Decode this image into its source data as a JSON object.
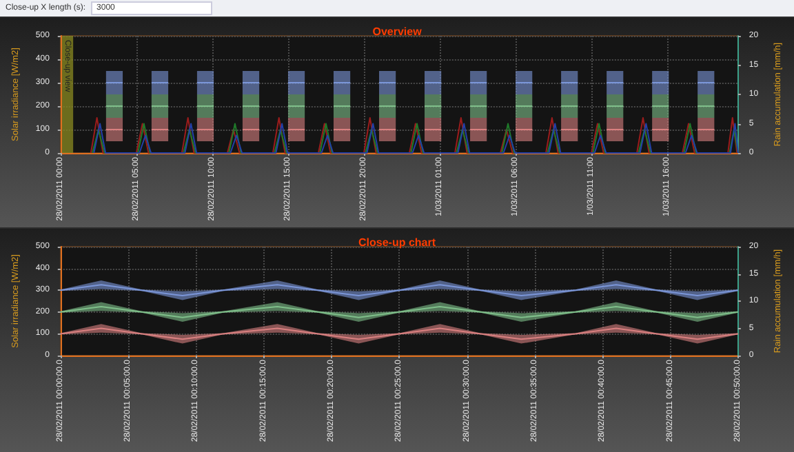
{
  "chart_data": [
    {
      "type": "line",
      "title": "Overview",
      "ylabel": "Solar irradiance [W/m2]",
      "y2label": "Rain accumulation [mm/h]",
      "annotations": [
        "Close-up X length (s):",
        "3000"
      ],
      "grid": true,
      "xlim": [
        "2011-02-28T00:00",
        "2011-03-01T20:40"
      ],
      "xticks": [
        {
          "value": "2011-02-28T00:00",
          "label": "28/02/2011 00:00"
        },
        {
          "value": "2011-02-28T05:00",
          "label": "28/02/2011 05:00"
        },
        {
          "value": "2011-02-28T10:00",
          "label": "28/02/2011 10:00"
        },
        {
          "value": "2011-02-28T15:00",
          "label": "28/02/2011 15:00"
        },
        {
          "value": "2011-02-28T20:00",
          "label": "28/02/2011 20:00"
        },
        {
          "value": "2011-03-01T01:00",
          "label": "1/03/2011 01:00"
        },
        {
          "value": "2011-03-01T06:00",
          "label": "1/03/2011 06:00"
        },
        {
          "value": "2011-03-01T11:00",
          "label": "1/03/2011 11:00"
        },
        {
          "value": "2011-03-01T16:00",
          "label": "1/03/2011 16:00"
        }
      ],
      "ylim": [
        0,
        500
      ],
      "yticks": [
        0,
        100,
        200,
        300,
        400,
        500
      ],
      "y2lim": [
        0,
        20
      ],
      "y2ticks": [
        0,
        5,
        10,
        15,
        20
      ],
      "bands": [
        {
          "axis": "x",
          "from": "2011-02-28T00:00",
          "to": "2011-02-28T00:50",
          "label": "Close-up view",
          "color": "#8a8a20"
        }
      ],
      "series": [
        {
          "color": "#7b96d8",
          "x": [
            "2011-02-28T03:00",
            "2011-02-28T04:06"
          ],
          "values": [
            300,
            300
          ],
          "lower": [
            250,
            250
          ],
          "upper": [
            350,
            350
          ]
        },
        {
          "color": "#7b96d8",
          "x": [
            "2011-02-28T06:00",
            "2011-02-28T07:06"
          ],
          "values": [
            300,
            300
          ],
          "lower": [
            250,
            250
          ],
          "upper": [
            350,
            350
          ]
        },
        {
          "color": "#7b96d8",
          "x": [
            "2011-02-28T09:00",
            "2011-02-28T10:06"
          ],
          "values": [
            300,
            300
          ],
          "lower": [
            250,
            250
          ],
          "upper": [
            350,
            350
          ]
        },
        {
          "color": "#7b96d8",
          "x": [
            "2011-02-28T12:00",
            "2011-02-28T13:06"
          ],
          "values": [
            300,
            300
          ],
          "lower": [
            250,
            250
          ],
          "upper": [
            350,
            350
          ]
        },
        {
          "color": "#7b96d8",
          "x": [
            "2011-02-28T15:00",
            "2011-02-28T16:06"
          ],
          "values": [
            300,
            300
          ],
          "lower": [
            250,
            250
          ],
          "upper": [
            350,
            350
          ]
        },
        {
          "color": "#7b96d8",
          "x": [
            "2011-02-28T18:00",
            "2011-02-28T19:06"
          ],
          "values": [
            300,
            300
          ],
          "lower": [
            250,
            250
          ],
          "upper": [
            350,
            350
          ]
        },
        {
          "color": "#7b96d8",
          "x": [
            "2011-02-28T21:00",
            "2011-02-28T22:06"
          ],
          "values": [
            300,
            300
          ],
          "lower": [
            250,
            250
          ],
          "upper": [
            350,
            350
          ]
        },
        {
          "color": "#7b96d8",
          "x": [
            "2011-03-01T00:00",
            "2011-03-01T01:06"
          ],
          "values": [
            300,
            300
          ],
          "lower": [
            250,
            250
          ],
          "upper": [
            350,
            350
          ]
        },
        {
          "color": "#7b96d8",
          "x": [
            "2011-03-01T03:00",
            "2011-03-01T04:06"
          ],
          "values": [
            300,
            300
          ],
          "lower": [
            250,
            250
          ],
          "upper": [
            350,
            350
          ]
        },
        {
          "color": "#7b96d8",
          "x": [
            "2011-03-01T06:00",
            "2011-03-01T07:06"
          ],
          "values": [
            300,
            300
          ],
          "lower": [
            250,
            250
          ],
          "upper": [
            350,
            350
          ]
        },
        {
          "color": "#7b96d8",
          "x": [
            "2011-03-01T09:00",
            "2011-03-01T10:06"
          ],
          "values": [
            300,
            300
          ],
          "lower": [
            250,
            250
          ],
          "upper": [
            350,
            350
          ]
        },
        {
          "color": "#7b96d8",
          "x": [
            "2011-03-01T12:00",
            "2011-03-01T13:06"
          ],
          "values": [
            300,
            300
          ],
          "lower": [
            250,
            250
          ],
          "upper": [
            350,
            350
          ]
        },
        {
          "color": "#7b96d8",
          "x": [
            "2011-03-01T15:00",
            "2011-03-01T16:06"
          ],
          "values": [
            300,
            300
          ],
          "lower": [
            250,
            250
          ],
          "upper": [
            350,
            350
          ]
        },
        {
          "color": "#7b96d8",
          "x": [
            "2011-03-01T18:00",
            "2011-03-01T19:06"
          ],
          "values": [
            300,
            300
          ],
          "lower": [
            250,
            250
          ],
          "upper": [
            350,
            350
          ]
        },
        {
          "color": "#7fbf8a",
          "x": [
            "2011-02-28T03:00",
            "2011-02-28T04:06"
          ],
          "values": [
            200,
            200
          ],
          "lower": [
            150,
            150
          ],
          "upper": [
            250,
            250
          ]
        },
        {
          "color": "#7fbf8a",
          "x": [
            "2011-02-28T06:00",
            "2011-02-28T07:06"
          ],
          "values": [
            200,
            200
          ],
          "lower": [
            150,
            150
          ],
          "upper": [
            250,
            250
          ]
        },
        {
          "color": "#7fbf8a",
          "x": [
            "2011-02-28T09:00",
            "2011-02-28T10:06"
          ],
          "values": [
            200,
            200
          ],
          "lower": [
            150,
            150
          ],
          "upper": [
            250,
            250
          ]
        },
        {
          "color": "#7fbf8a",
          "x": [
            "2011-02-28T12:00",
            "2011-02-28T13:06"
          ],
          "values": [
            200,
            200
          ],
          "lower": [
            150,
            150
          ],
          "upper": [
            250,
            250
          ]
        },
        {
          "color": "#7fbf8a",
          "x": [
            "2011-02-28T15:00",
            "2011-02-28T16:06"
          ],
          "values": [
            200,
            200
          ],
          "lower": [
            150,
            150
          ],
          "upper": [
            250,
            250
          ]
        },
        {
          "color": "#7fbf8a",
          "x": [
            "2011-02-28T18:00",
            "2011-02-28T19:06"
          ],
          "values": [
            200,
            200
          ],
          "lower": [
            150,
            150
          ],
          "upper": [
            250,
            250
          ]
        },
        {
          "color": "#7fbf8a",
          "x": [
            "2011-02-28T21:00",
            "2011-02-28T22:06"
          ],
          "values": [
            200,
            200
          ],
          "lower": [
            150,
            150
          ],
          "upper": [
            250,
            250
          ]
        },
        {
          "color": "#7fbf8a",
          "x": [
            "2011-03-01T00:00",
            "2011-03-01T01:06"
          ],
          "values": [
            200,
            200
          ],
          "lower": [
            150,
            150
          ],
          "upper": [
            250,
            250
          ]
        },
        {
          "color": "#7fbf8a",
          "x": [
            "2011-03-01T03:00",
            "2011-03-01T04:06"
          ],
          "values": [
            200,
            200
          ],
          "lower": [
            150,
            150
          ],
          "upper": [
            250,
            250
          ]
        },
        {
          "color": "#7fbf8a",
          "x": [
            "2011-03-01T06:00",
            "2011-03-01T07:06"
          ],
          "values": [
            200,
            200
          ],
          "lower": [
            150,
            150
          ],
          "upper": [
            250,
            250
          ]
        },
        {
          "color": "#7fbf8a",
          "x": [
            "2011-03-01T09:00",
            "2011-03-01T10:06"
          ],
          "values": [
            200,
            200
          ],
          "lower": [
            150,
            150
          ],
          "upper": [
            250,
            250
          ]
        },
        {
          "color": "#7fbf8a",
          "x": [
            "2011-03-01T12:00",
            "2011-03-01T13:06"
          ],
          "values": [
            200,
            200
          ],
          "lower": [
            150,
            150
          ],
          "upper": [
            250,
            250
          ]
        },
        {
          "color": "#7fbf8a",
          "x": [
            "2011-03-01T15:00",
            "2011-03-01T16:06"
          ],
          "values": [
            200,
            200
          ],
          "lower": [
            150,
            150
          ],
          "upper": [
            250,
            250
          ]
        },
        {
          "color": "#7fbf8a",
          "x": [
            "2011-03-01T18:00",
            "2011-03-01T19:06"
          ],
          "values": [
            200,
            200
          ],
          "lower": [
            150,
            150
          ],
          "upper": [
            250,
            250
          ]
        },
        {
          "color": "#d98080",
          "x": [
            "2011-02-28T03:00",
            "2011-02-28T04:06"
          ],
          "values": [
            100,
            100
          ],
          "lower": [
            50,
            50
          ],
          "upper": [
            150,
            150
          ]
        },
        {
          "color": "#d98080",
          "x": [
            "2011-02-28T06:00",
            "2011-02-28T07:06"
          ],
          "values": [
            100,
            100
          ],
          "lower": [
            50,
            50
          ],
          "upper": [
            150,
            150
          ]
        },
        {
          "color": "#d98080",
          "x": [
            "2011-02-28T09:00",
            "2011-02-28T10:06"
          ],
          "values": [
            100,
            100
          ],
          "lower": [
            50,
            50
          ],
          "upper": [
            150,
            150
          ]
        },
        {
          "color": "#d98080",
          "x": [
            "2011-02-28T12:00",
            "2011-02-28T13:06"
          ],
          "values": [
            100,
            100
          ],
          "lower": [
            50,
            50
          ],
          "upper": [
            150,
            150
          ]
        },
        {
          "color": "#d98080",
          "x": [
            "2011-02-28T15:00",
            "2011-02-28T16:06"
          ],
          "values": [
            100,
            100
          ],
          "lower": [
            50,
            50
          ],
          "upper": [
            150,
            150
          ]
        },
        {
          "color": "#d98080",
          "x": [
            "2011-02-28T18:00",
            "2011-02-28T19:06"
          ],
          "values": [
            100,
            100
          ],
          "lower": [
            50,
            50
          ],
          "upper": [
            150,
            150
          ]
        },
        {
          "color": "#d98080",
          "x": [
            "2011-02-28T21:00",
            "2011-02-28T22:06"
          ],
          "values": [
            100,
            100
          ],
          "lower": [
            50,
            50
          ],
          "upper": [
            150,
            150
          ]
        },
        {
          "color": "#d98080",
          "x": [
            "2011-03-01T00:00",
            "2011-03-01T01:06"
          ],
          "values": [
            100,
            100
          ],
          "lower": [
            50,
            50
          ],
          "upper": [
            150,
            150
          ]
        },
        {
          "color": "#d98080",
          "x": [
            "2011-03-01T03:00",
            "2011-03-01T04:06"
          ],
          "values": [
            100,
            100
          ],
          "lower": [
            50,
            50
          ],
          "upper": [
            150,
            150
          ]
        },
        {
          "color": "#d98080",
          "x": [
            "2011-03-01T06:00",
            "2011-03-01T07:06"
          ],
          "values": [
            100,
            100
          ],
          "lower": [
            50,
            50
          ],
          "upper": [
            150,
            150
          ]
        },
        {
          "color": "#d98080",
          "x": [
            "2011-03-01T09:00",
            "2011-03-01T10:06"
          ],
          "values": [
            100,
            100
          ],
          "lower": [
            50,
            50
          ],
          "upper": [
            150,
            150
          ]
        },
        {
          "color": "#d98080",
          "x": [
            "2011-03-01T12:00",
            "2011-03-01T13:06"
          ],
          "values": [
            100,
            100
          ],
          "lower": [
            50,
            50
          ],
          "upper": [
            150,
            150
          ]
        },
        {
          "color": "#d98080",
          "x": [
            "2011-03-01T15:00",
            "2011-03-01T16:06"
          ],
          "values": [
            100,
            100
          ],
          "lower": [
            50,
            50
          ],
          "upper": [
            150,
            150
          ]
        },
        {
          "color": "#d98080",
          "x": [
            "2011-03-01T18:00",
            "2011-03-01T19:06"
          ],
          "values": [
            100,
            100
          ],
          "lower": [
            50,
            50
          ],
          "upper": [
            150,
            150
          ]
        },
        {
          "color": "#9b1c1c",
          "axis": "y2",
          "x": [
            "2011-02-28T02:00",
            "2011-02-28T02:24",
            "2011-02-28T02:48",
            "2011-02-28T05:00",
            "2011-02-28T05:24",
            "2011-02-28T05:48",
            "2011-02-28T08:00",
            "2011-02-28T08:24",
            "2011-02-28T08:48",
            "2011-02-28T11:00",
            "2011-02-28T11:24",
            "2011-02-28T11:48",
            "2011-02-28T14:00",
            "2011-02-28T14:24",
            "2011-02-28T14:48",
            "2011-02-28T17:00",
            "2011-02-28T17:24",
            "2011-02-28T17:48",
            "2011-02-28T20:00",
            "2011-02-28T20:24",
            "2011-02-28T20:48",
            "2011-02-28T23:00",
            "2011-02-28T23:24",
            "2011-02-28T23:48",
            "2011-03-01T02:00",
            "2011-03-01T02:24",
            "2011-03-01T02:48",
            "2011-03-01T05:00",
            "2011-03-01T05:24",
            "2011-03-01T05:48",
            "2011-03-01T08:00",
            "2011-03-01T08:24",
            "2011-03-01T08:48",
            "2011-03-01T11:00",
            "2011-03-01T11:24",
            "2011-03-01T11:48",
            "2011-03-01T14:00",
            "2011-03-01T14:24",
            "2011-03-01T14:48",
            "2011-03-01T17:00",
            "2011-03-01T17:24",
            "2011-03-01T17:48",
            "2011-03-01T20:00",
            "2011-03-01T20:18",
            "2011-03-01T20:36"
          ],
          "values": [
            0,
            6,
            0,
            0,
            5,
            0,
            0,
            6,
            0,
            0,
            4,
            0,
            0,
            6,
            0,
            0,
            5,
            0,
            0,
            6,
            0,
            0,
            5,
            0,
            0,
            6,
            0,
            0,
            4,
            0,
            0,
            6,
            0,
            0,
            5,
            0,
            0,
            6,
            0,
            0,
            5,
            0,
            0,
            6,
            0
          ]
        },
        {
          "color": "#1f7a2a",
          "axis": "y2",
          "x": [
            "2011-02-28T02:06",
            "2011-02-28T02:30",
            "2011-02-28T02:54",
            "2011-02-28T05:06",
            "2011-02-28T05:30",
            "2011-02-28T05:54",
            "2011-02-28T08:06",
            "2011-02-28T08:30",
            "2011-02-28T08:54",
            "2011-02-28T11:06",
            "2011-02-28T11:30",
            "2011-02-28T11:54",
            "2011-02-28T14:06",
            "2011-02-28T14:30",
            "2011-02-28T14:54",
            "2011-02-28T17:06",
            "2011-02-28T17:30",
            "2011-02-28T17:54",
            "2011-02-28T20:06",
            "2011-02-28T20:30",
            "2011-02-28T20:54",
            "2011-02-28T23:06",
            "2011-02-28T23:30",
            "2011-02-28T23:54",
            "2011-03-01T02:06",
            "2011-03-01T02:30",
            "2011-03-01T02:54",
            "2011-03-01T05:06",
            "2011-03-01T05:30",
            "2011-03-01T05:54",
            "2011-03-01T08:06",
            "2011-03-01T08:30",
            "2011-03-01T08:54",
            "2011-03-01T11:06",
            "2011-03-01T11:30",
            "2011-03-01T11:54",
            "2011-03-01T14:06",
            "2011-03-01T14:30",
            "2011-03-01T14:54",
            "2011-03-01T17:06",
            "2011-03-01T17:30",
            "2011-03-01T17:54",
            "2011-03-01T20:06",
            "2011-03-01T20:24",
            "2011-03-01T20:40"
          ],
          "values": [
            0,
            4,
            0,
            0,
            5,
            0,
            0,
            4,
            0,
            0,
            5,
            0,
            0,
            4,
            0,
            0,
            5,
            0,
            0,
            4,
            0,
            0,
            5,
            0,
            0,
            4,
            0,
            0,
            5,
            0,
            0,
            4,
            0,
            0,
            5,
            0,
            0,
            4,
            0,
            0,
            5,
            0,
            0,
            4,
            0
          ]
        },
        {
          "color": "#2340a8",
          "axis": "y2",
          "x": [
            "2011-02-28T02:12",
            "2011-02-28T02:36",
            "2011-02-28T02:58",
            "2011-02-28T05:12",
            "2011-02-28T05:36",
            "2011-02-28T05:58",
            "2011-02-28T08:12",
            "2011-02-28T08:36",
            "2011-02-28T08:58",
            "2011-02-28T11:12",
            "2011-02-28T11:36",
            "2011-02-28T11:58",
            "2011-02-28T14:12",
            "2011-02-28T14:36",
            "2011-02-28T14:58",
            "2011-02-28T17:12",
            "2011-02-28T17:36",
            "2011-02-28T17:58",
            "2011-02-28T20:12",
            "2011-02-28T20:36",
            "2011-02-28T20:58",
            "2011-02-28T23:12",
            "2011-02-28T23:36",
            "2011-02-28T23:58",
            "2011-03-01T02:12",
            "2011-03-01T02:36",
            "2011-03-01T02:58",
            "2011-03-01T05:12",
            "2011-03-01T05:36",
            "2011-03-01T05:58",
            "2011-03-01T08:12",
            "2011-03-01T08:36",
            "2011-03-01T08:58",
            "2011-03-01T11:12",
            "2011-03-01T11:36",
            "2011-03-01T11:58",
            "2011-03-01T14:12",
            "2011-03-01T14:36",
            "2011-03-01T14:58",
            "2011-03-01T17:12",
            "2011-03-01T17:36",
            "2011-03-01T17:58",
            "2011-03-01T20:10",
            "2011-03-01T20:28",
            "2011-03-01T20:40"
          ],
          "values": [
            0,
            5,
            0,
            0,
            3,
            0,
            0,
            5,
            0,
            0,
            3,
            0,
            0,
            5,
            0,
            0,
            3,
            0,
            0,
            5,
            0,
            0,
            3,
            0,
            0,
            5,
            0,
            0,
            3,
            0,
            0,
            5,
            0,
            0,
            3,
            0,
            0,
            5,
            0,
            0,
            3,
            0,
            0,
            5,
            0
          ]
        }
      ]
    },
    {
      "type": "line",
      "title": "Close-up chart",
      "ylabel": "Solar irradiance [W/m2]",
      "y2label": "Rain accumulation [mm/h]",
      "grid": true,
      "xlim": [
        "2011-02-28T00:00",
        "2011-02-28T00:50"
      ],
      "xticks": [
        {
          "value": "2011-02-28T00:00",
          "label": "28/02/2011 00:00:00.0"
        },
        {
          "value": "2011-02-28T00:05",
          "label": "28/02/2011 00:05:00.0"
        },
        {
          "value": "2011-02-28T00:10",
          "label": "28/02/2011 00:10:00.0"
        },
        {
          "value": "2011-02-28T00:15",
          "label": "28/02/2011 00:15:00.0"
        },
        {
          "value": "2011-02-28T00:20",
          "label": "28/02/2011 00:20:00.0"
        },
        {
          "value": "2011-02-28T00:25",
          "label": "28/02/2011 00:25:00.0"
        },
        {
          "value": "2011-02-28T00:30",
          "label": "28/02/2011 00:30:00.0"
        },
        {
          "value": "2011-02-28T00:35",
          "label": "28/02/2011 00:35:00.0"
        },
        {
          "value": "2011-02-28T00:40",
          "label": "28/02/2011 00:40:00.0"
        },
        {
          "value": "2011-02-28T00:45",
          "label": "28/02/2011 00:45:00.0"
        },
        {
          "value": "2011-02-28T00:50",
          "label": "28/02/2011 00:50:00.0"
        }
      ],
      "ylim": [
        0,
        500
      ],
      "yticks": [
        0,
        100,
        200,
        300,
        400,
        500
      ],
      "y2lim": [
        0,
        20
      ],
      "y2ticks": [
        0,
        5,
        10,
        15,
        20
      ],
      "x": [
        "2011-02-28T00:00",
        "2011-02-28T00:03",
        "2011-02-28T00:06",
        "2011-02-28T00:09",
        "2011-02-28T00:12",
        "2011-02-28T00:16",
        "2011-02-28T00:19",
        "2011-02-28T00:22",
        "2011-02-28T00:25",
        "2011-02-28T00:28",
        "2011-02-28T00:31",
        "2011-02-28T00:34",
        "2011-02-28T00:38",
        "2011-02-28T00:41",
        "2011-02-28T00:44",
        "2011-02-28T00:47",
        "2011-02-28T00:50"
      ],
      "series": [
        {
          "color": "#7b96d8",
          "values": [
            300,
            325,
            300,
            275,
            300,
            325,
            300,
            275,
            300,
            325,
            300,
            275,
            300,
            325,
            300,
            275,
            300
          ],
          "lower": [
            297,
            305,
            297,
            255,
            297,
            305,
            297,
            255,
            297,
            305,
            297,
            255,
            297,
            305,
            297,
            255,
            297
          ],
          "upper": [
            303,
            345,
            303,
            295,
            303,
            345,
            303,
            295,
            303,
            345,
            303,
            295,
            303,
            345,
            303,
            295,
            303
          ]
        },
        {
          "color": "#7fbf8a",
          "values": [
            200,
            225,
            200,
            175,
            200,
            225,
            200,
            175,
            200,
            225,
            200,
            175,
            200,
            225,
            200,
            175,
            200
          ],
          "lower": [
            197,
            205,
            197,
            155,
            197,
            205,
            197,
            155,
            197,
            205,
            197,
            155,
            197,
            205,
            197,
            155,
            197
          ],
          "upper": [
            203,
            245,
            203,
            195,
            203,
            245,
            203,
            195,
            203,
            245,
            203,
            195,
            203,
            245,
            203,
            195,
            203
          ]
        },
        {
          "color": "#d98080",
          "values": [
            100,
            125,
            100,
            75,
            100,
            125,
            100,
            75,
            100,
            125,
            100,
            75,
            100,
            125,
            100,
            75,
            100
          ],
          "lower": [
            97,
            105,
            97,
            55,
            97,
            105,
            97,
            55,
            97,
            105,
            97,
            55,
            97,
            105,
            97,
            55,
            97
          ],
          "upper": [
            103,
            145,
            103,
            95,
            103,
            145,
            103,
            95,
            103,
            145,
            103,
            95,
            103,
            145,
            103,
            95,
            103
          ]
        }
      ]
    }
  ]
}
